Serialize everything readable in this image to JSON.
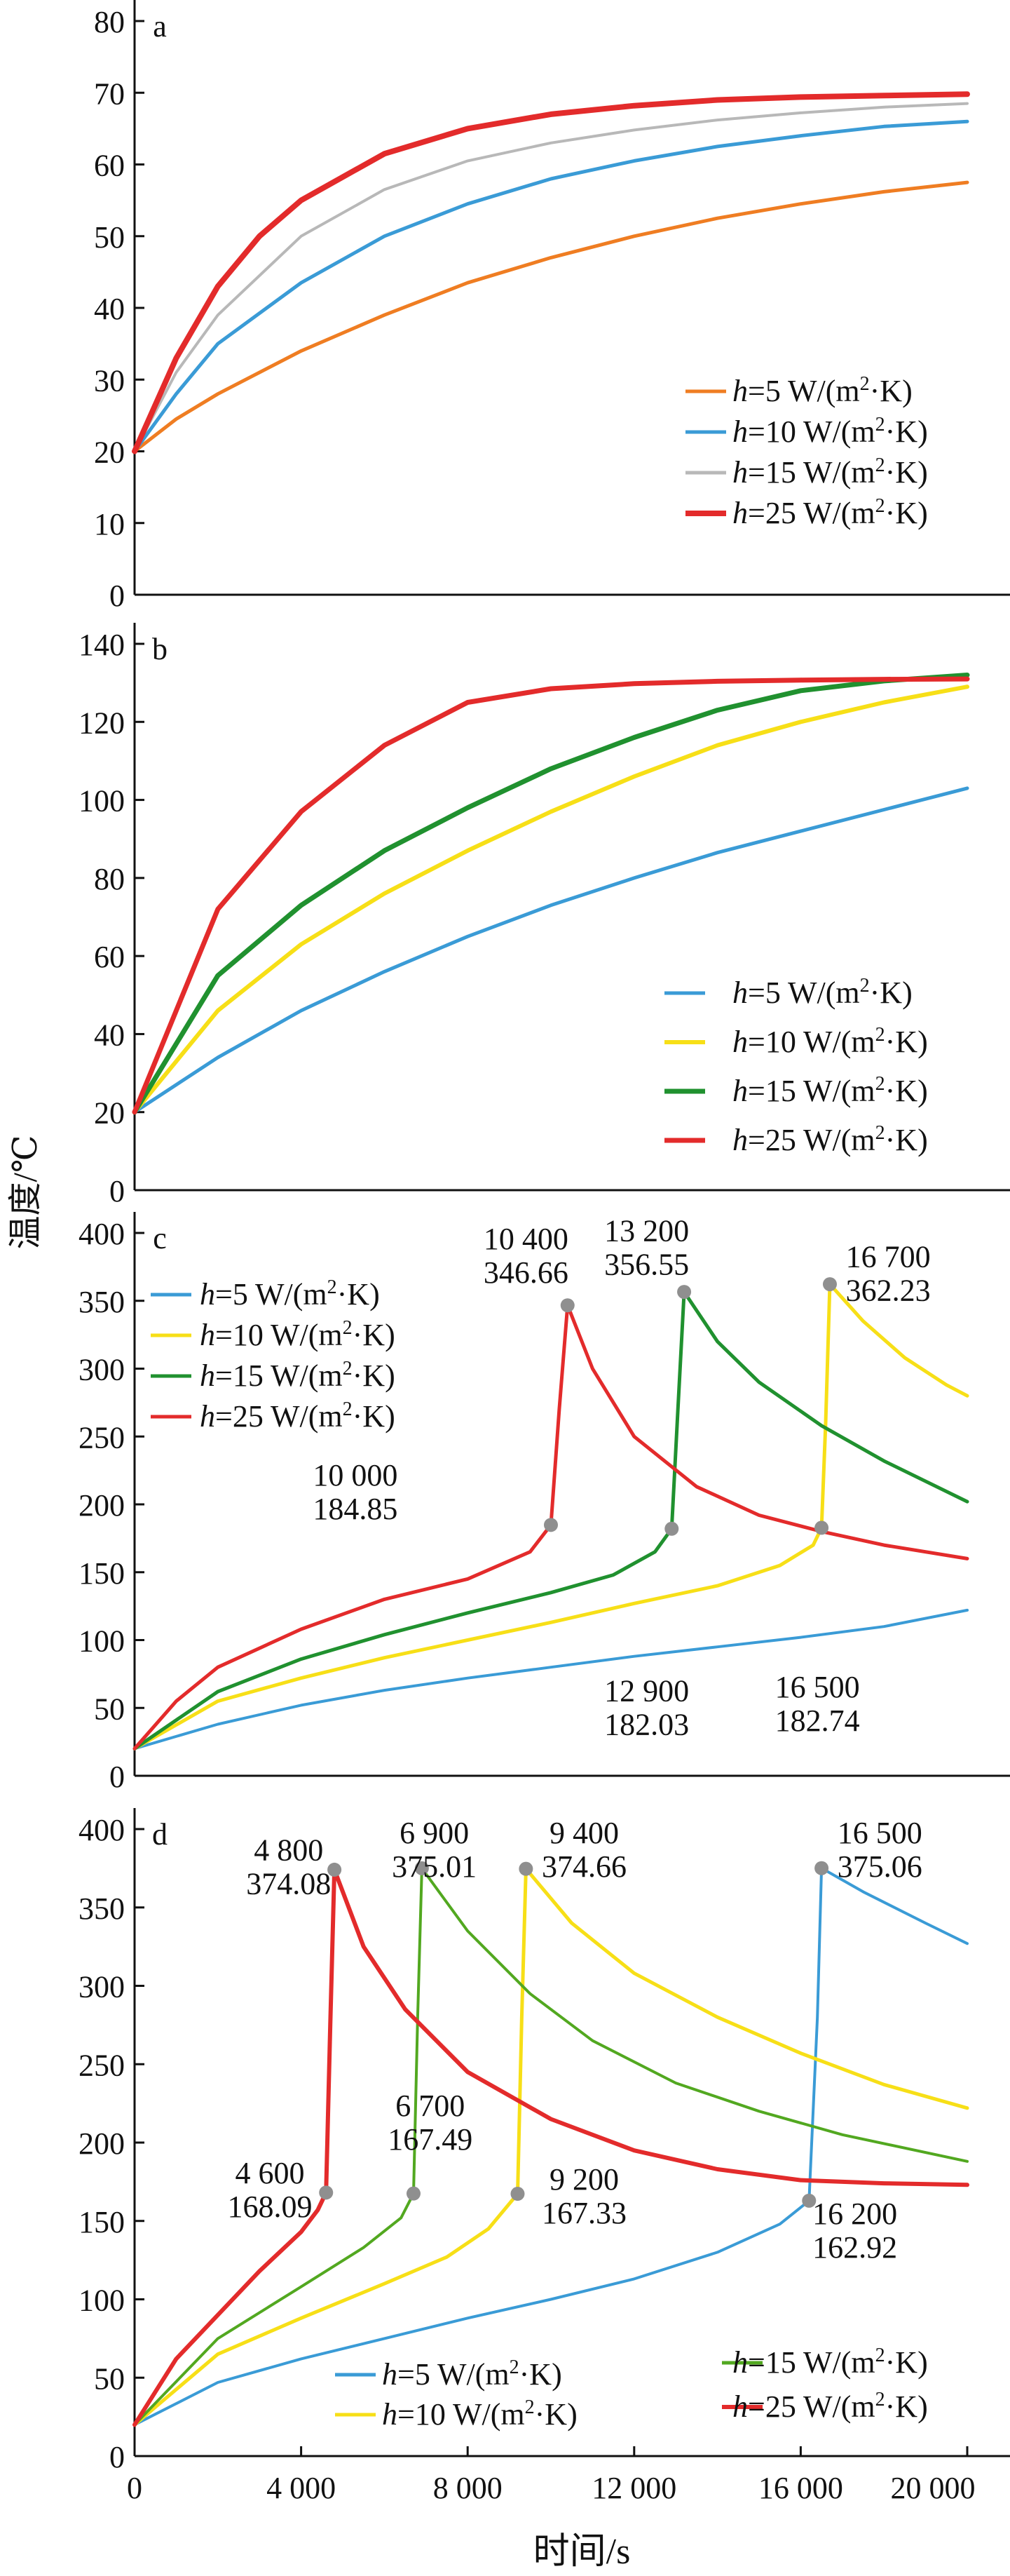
{
  "figure": {
    "ylabel": "温度/℃",
    "xlabel": "时间/s"
  },
  "xaxis": {
    "range": [
      0,
      20000
    ],
    "ticks": [
      0,
      4000,
      8000,
      12000,
      16000,
      20000
    ],
    "tick_labels": [
      "0",
      "4 000",
      "8 000",
      "12 000",
      "16 000",
      "20 000"
    ]
  },
  "colors": {
    "h5_a": "#ef7d22",
    "h5": "#3a9bd6",
    "h10_a": "#3a9bd6",
    "h10": "#f7df17",
    "h15_a": "#b8b8b8",
    "h15_b": "#20912f",
    "h15_d": "#52a820",
    "h25": "#e32b2b",
    "marker": "#8f8f8f"
  },
  "chart_data": [
    {
      "panel_label": "a",
      "type": "line",
      "ylim": [
        0,
        80
      ],
      "yticks": [
        0,
        10,
        20,
        30,
        40,
        50,
        60,
        70,
        80
      ],
      "legend_position": "lower-right",
      "series": [
        {
          "name": "h=5 W/(m²·K)",
          "label_parts": [
            "h",
            "=5 W/(m",
            "2",
            "·K)"
          ],
          "color_key": "h5_a",
          "width": 5,
          "x": [
            0,
            1000,
            2000,
            4000,
            6000,
            8000,
            10000,
            12000,
            14000,
            16000,
            18000,
            20000
          ],
          "y": [
            20,
            24.5,
            28,
            34,
            39,
            43.5,
            47,
            50,
            52.5,
            54.5,
            56.2,
            57.5
          ]
        },
        {
          "name": "h=10 W/(m²·K)",
          "label_parts": [
            "h",
            "=10 W/(m",
            "2",
            "·K)"
          ],
          "color_key": "h10_a",
          "width": 5,
          "x": [
            0,
            1000,
            2000,
            4000,
            6000,
            8000,
            10000,
            12000,
            14000,
            16000,
            18000,
            20000
          ],
          "y": [
            20,
            28,
            35,
            43.5,
            50,
            54.5,
            58,
            60.5,
            62.5,
            64,
            65.3,
            66
          ]
        },
        {
          "name": "h=15 W/(m²·K)",
          "label_parts": [
            "h",
            "=15 W/(m",
            "2",
            "·K)"
          ],
          "color_key": "h15_a",
          "width": 4,
          "x": [
            0,
            1000,
            2000,
            4000,
            6000,
            8000,
            10000,
            12000,
            14000,
            16000,
            18000,
            20000
          ],
          "y": [
            20,
            31,
            39,
            50,
            56.5,
            60.5,
            63,
            64.8,
            66.2,
            67.2,
            68,
            68.5
          ]
        },
        {
          "name": "h=25 W/(m²·K)",
          "label_parts": [
            "h",
            "=25 W/(m",
            "2",
            "·K)"
          ],
          "color_key": "h25",
          "width": 8,
          "x": [
            0,
            1000,
            2000,
            3000,
            4000,
            6000,
            8000,
            10000,
            12000,
            14000,
            16000,
            18000,
            20000
          ],
          "y": [
            20,
            33,
            43,
            50,
            55,
            61.5,
            65,
            67,
            68.2,
            69,
            69.4,
            69.6,
            69.8
          ]
        }
      ]
    },
    {
      "panel_label": "b",
      "type": "line",
      "ylim": [
        0,
        140
      ],
      "yticks": [
        0,
        20,
        40,
        60,
        80,
        100,
        120,
        140
      ],
      "legend_position": "lower-right",
      "series": [
        {
          "name": "h=5 W/(m²·K)",
          "label_parts": [
            "h",
            "=5 W/(m",
            "2",
            "·K)"
          ],
          "color_key": "h5",
          "width": 5,
          "x": [
            0,
            2000,
            4000,
            6000,
            8000,
            10000,
            12000,
            14000,
            16000,
            18000,
            20000
          ],
          "y": [
            20,
            34,
            46,
            56,
            65,
            73,
            80,
            86.5,
            92,
            97.5,
            103
          ]
        },
        {
          "name": "h=10 W/(m²·K)",
          "label_parts": [
            "h",
            "=10 W/(m",
            "2",
            "·K)"
          ],
          "color_key": "h10",
          "width": 6,
          "x": [
            0,
            2000,
            4000,
            6000,
            8000,
            10000,
            12000,
            14000,
            16000,
            18000,
            20000
          ],
          "y": [
            20,
            46,
            63,
            76,
            87,
            97,
            106,
            114,
            120,
            125,
            129
          ]
        },
        {
          "name": "h=15 W/(m²·K)",
          "label_parts": [
            "h",
            "=15 W/(m",
            "2",
            "·K)"
          ],
          "color_key": "h15_b",
          "width": 7,
          "x": [
            0,
            2000,
            4000,
            6000,
            8000,
            10000,
            12000,
            14000,
            16000,
            18000,
            20000
          ],
          "y": [
            20,
            55,
            73,
            87,
            98,
            108,
            116,
            123,
            128,
            130.5,
            132
          ]
        },
        {
          "name": "h=25 W/(m²·K)",
          "label_parts": [
            "h",
            "=25 W/(m",
            "2",
            "·K)"
          ],
          "color_key": "h25",
          "width": 7,
          "x": [
            0,
            2000,
            4000,
            6000,
            8000,
            10000,
            12000,
            14000,
            16000,
            18000,
            20000
          ],
          "y": [
            20,
            72,
            97,
            114,
            125,
            128.5,
            129.8,
            130.4,
            130.7,
            130.9,
            131
          ]
        }
      ]
    },
    {
      "panel_label": "c",
      "type": "line",
      "ylim": [
        0,
        400
      ],
      "yticks": [
        0,
        50,
        100,
        150,
        200,
        250,
        300,
        350,
        400
      ],
      "legend_position": "upper-left",
      "series": [
        {
          "name": "h=5 W/(m²·K)",
          "label_parts": [
            "h",
            "=5 W/(m",
            "2",
            "·K)"
          ],
          "color_key": "h5",
          "width": 4,
          "x": [
            0,
            2000,
            4000,
            6000,
            8000,
            10000,
            12000,
            14000,
            16000,
            18000,
            20000
          ],
          "y": [
            20,
            38,
            52,
            63,
            72,
            80,
            88,
            95,
            102,
            110,
            122
          ]
        },
        {
          "name": "h=10 W/(m²·K)",
          "label_parts": [
            "h",
            "=10 W/(m",
            "2",
            "·K)"
          ],
          "color_key": "h10",
          "width": 5,
          "x": [
            0,
            2000,
            4000,
            6000,
            8000,
            10000,
            12000,
            14000,
            15500,
            16300,
            16500,
            16600,
            16700,
            17500,
            18500,
            19500,
            20000
          ],
          "y": [
            20,
            55,
            72,
            87,
            100,
            113,
            127,
            140,
            155,
            170,
            182.74,
            260,
            362.23,
            335,
            308,
            288,
            280
          ]
        },
        {
          "name": "h=15 W/(m²·K)",
          "label_parts": [
            "h",
            "=15 W/(m",
            "2",
            "·K)"
          ],
          "color_key": "h15_b",
          "width": 5,
          "x": [
            0,
            2000,
            4000,
            6000,
            8000,
            10000,
            11500,
            12500,
            12900,
            13050,
            13200,
            14000,
            15000,
            16500,
            18000,
            20000
          ],
          "y": [
            20,
            62,
            86,
            104,
            120,
            135,
            148,
            165,
            182.03,
            270,
            356.55,
            320,
            290,
            258,
            232,
            202
          ]
        },
        {
          "name": "h=25 W/(m²·K)",
          "label_parts": [
            "h",
            "=25 W/(m",
            "2",
            "·K)"
          ],
          "color_key": "h25",
          "width": 5,
          "x": [
            0,
            1000,
            2000,
            4000,
            6000,
            8000,
            9500,
            10000,
            10200,
            10400,
            11000,
            12000,
            13500,
            15000,
            16500,
            18000,
            20000
          ],
          "y": [
            20,
            55,
            80,
            108,
            130,
            145,
            165,
            184.85,
            270,
            346.66,
            300,
            250,
            213,
            192,
            180,
            170,
            160
          ]
        }
      ],
      "markers": [
        {
          "x": 10400,
          "y": 346.66
        },
        {
          "x": 13200,
          "y": 356.55
        },
        {
          "x": 16700,
          "y": 362.23
        },
        {
          "x": 10000,
          "y": 184.85
        },
        {
          "x": 12900,
          "y": 182.03
        },
        {
          "x": 16500,
          "y": 182.74
        }
      ],
      "annotations": [
        {
          "x_label": "10 400",
          "y_label": "346.66",
          "ax": 9400,
          "ay": 388,
          "anchor": "middle"
        },
        {
          "x_label": "13 200",
          "y_label": "356.55",
          "ax": 12300,
          "ay": 394,
          "anchor": "middle"
        },
        {
          "x_label": "16 700",
          "y_label": "362.23",
          "ax": 18100,
          "ay": 375,
          "anchor": "middle"
        },
        {
          "x_label": "10 000",
          "y_label": "184.85",
          "ax": 5300,
          "ay": 214,
          "anchor": "middle"
        },
        {
          "x_label": "12 900",
          "y_label": "182.03",
          "ax": 12300,
          "ay": 55,
          "anchor": "middle"
        },
        {
          "x_label": "16 500",
          "y_label": "182.74",
          "ax": 16400,
          "ay": 58,
          "anchor": "middle"
        }
      ]
    },
    {
      "panel_label": "d",
      "type": "line",
      "ylim": [
        0,
        400
      ],
      "yticks": [
        0,
        50,
        100,
        150,
        200,
        250,
        300,
        350,
        400
      ],
      "legend_position": "bottom",
      "series": [
        {
          "name": "h=5 W/(m²·K)",
          "label_parts": [
            "h",
            "=5 W/(m",
            "2",
            "·K)"
          ],
          "color_key": "h5",
          "width": 4,
          "x": [
            0,
            2000,
            4000,
            6000,
            8000,
            10000,
            12000,
            14000,
            15500,
            16200,
            16400,
            16500,
            17500,
            19000,
            20000
          ],
          "y": [
            20,
            47,
            62,
            75,
            88,
            100,
            113,
            130,
            148,
            162.92,
            280,
            375.06,
            360,
            340,
            327
          ]
        },
        {
          "name": "h=10 W/(m²·K)",
          "label_parts": [
            "h",
            "=10 W/(m",
            "2",
            "·K)"
          ],
          "color_key": "h10",
          "width": 5,
          "x": [
            0,
            2000,
            4000,
            6000,
            7500,
            8500,
            9200,
            9300,
            9400,
            10500,
            12000,
            14000,
            16000,
            18000,
            20000
          ],
          "y": [
            20,
            65,
            88,
            110,
            127,
            145,
            167.33,
            280,
            374.66,
            340,
            308,
            280,
            257,
            237,
            222
          ]
        },
        {
          "name": "h=15 W/(m²·K)",
          "label_parts": [
            "h",
            "=15 W/(m",
            "2",
            "·K)"
          ],
          "color_key": "h15_d",
          "width": 4,
          "x": [
            0,
            2000,
            4000,
            5500,
            6400,
            6700,
            6800,
            6900,
            8000,
            9500,
            11000,
            13000,
            15000,
            17000,
            20000
          ],
          "y": [
            20,
            75,
            108,
            133,
            152,
            167.49,
            280,
            375.01,
            335,
            295,
            265,
            238,
            220,
            205,
            188
          ]
        },
        {
          "name": "h=25 W/(m²·K)",
          "label_parts": [
            "h",
            "=25 W/(m",
            "2",
            "·K)"
          ],
          "color_key": "h25",
          "width": 6,
          "x": [
            0,
            1000,
            2000,
            3000,
            4000,
            4400,
            4600,
            4700,
            4800,
            5500,
            6500,
            8000,
            10000,
            12000,
            14000,
            16000,
            18000,
            20000
          ],
          "y": [
            20,
            62,
            90,
            118,
            143,
            157,
            168.09,
            275,
            374.08,
            325,
            285,
            245,
            215,
            195,
            183,
            176,
            174,
            173
          ]
        }
      ],
      "markers": [
        {
          "x": 4800,
          "y": 374.08
        },
        {
          "x": 6900,
          "y": 375.01
        },
        {
          "x": 9400,
          "y": 374.66
        },
        {
          "x": 16500,
          "y": 375.06
        },
        {
          "x": 4600,
          "y": 168.09
        },
        {
          "x": 6700,
          "y": 167.49
        },
        {
          "x": 9200,
          "y": 167.33
        },
        {
          "x": 16200,
          "y": 162.92
        }
      ],
      "annotations": [
        {
          "x_label": "4 800",
          "y_label": "374.08",
          "ax": 3700,
          "ay": 380,
          "anchor": "middle"
        },
        {
          "x_label": "6 900",
          "y_label": "375.01",
          "ax": 7200,
          "ay": 391,
          "anchor": "middle"
        },
        {
          "x_label": "9 400",
          "y_label": "374.66",
          "ax": 10800,
          "ay": 391,
          "anchor": "middle"
        },
        {
          "x_label": "16 500",
          "y_label": "375.06",
          "ax": 17900,
          "ay": 391,
          "anchor": "middle"
        },
        {
          "x_label": "4 600",
          "y_label": "168.09",
          "ax": 3250,
          "ay": 174,
          "anchor": "middle"
        },
        {
          "x_label": "6 700",
          "y_label": "167.49",
          "ax": 7100,
          "ay": 217,
          "anchor": "middle"
        },
        {
          "x_label": "9 200",
          "y_label": "167.33",
          "ax": 10800,
          "ay": 170,
          "anchor": "middle"
        },
        {
          "x_label": "16 200",
          "y_label": "162.92",
          "ax": 17300,
          "ay": 148,
          "anchor": "middle"
        }
      ]
    }
  ]
}
